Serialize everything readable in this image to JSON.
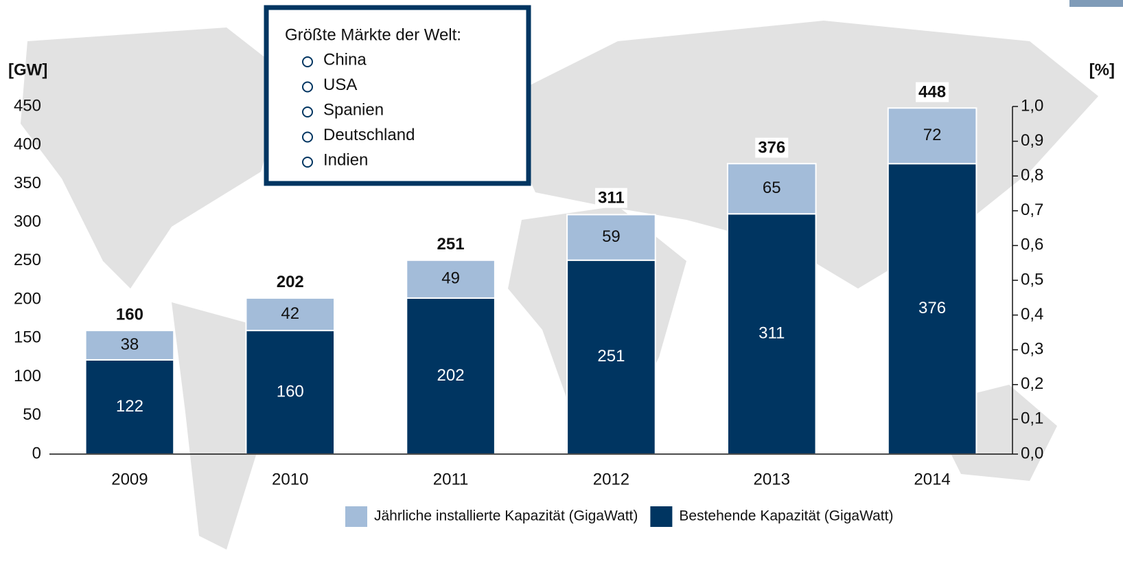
{
  "chart_data": {
    "type": "stacked_bar",
    "categories": [
      "2009",
      "2010",
      "2011",
      "2012",
      "2013",
      "2014"
    ],
    "series": [
      {
        "name": "Bestehende Kapazität (GigaWatt)",
        "color": "#003561",
        "values": [
          122,
          160,
          202,
          251,
          311,
          376
        ]
      },
      {
        "name": "Jährliche installierte Kapazität (GigaWatt)",
        "color": "#a3bcd9",
        "values": [
          38,
          42,
          49,
          59,
          65,
          72
        ]
      }
    ],
    "totals": [
      160,
      202,
      251,
      311,
      376,
      448
    ],
    "y_label": "[GW]",
    "y2_label": "[%]",
    "ylim": [
      0,
      450
    ],
    "yticks": [
      0,
      50,
      100,
      150,
      200,
      250,
      300,
      350,
      400,
      450
    ],
    "y2lim": [
      0,
      1.0
    ],
    "y2ticks": [
      {
        "value": 0,
        "label": "0,0"
      },
      {
        "value": 0.1,
        "label": "0,1"
      },
      {
        "value": 0.2,
        "label": "0,2"
      },
      {
        "value": 0.3,
        "label": "0,3"
      },
      {
        "value": 0.4,
        "label": "0,4"
      },
      {
        "value": 0.5,
        "label": "0,5"
      },
      {
        "value": 0.6,
        "label": "0,6"
      },
      {
        "value": 0.7,
        "label": "0,7"
      },
      {
        "value": 0.8,
        "label": "0,8"
      },
      {
        "value": 0.9,
        "label": "0,9"
      },
      {
        "value": 1.0,
        "label": "1,0"
      }
    ],
    "annotation": {
      "title": "Größte Märkte der Welt:",
      "items": [
        "China",
        "USA",
        "Spanien",
        "Deutschland",
        "Indien"
      ]
    }
  }
}
